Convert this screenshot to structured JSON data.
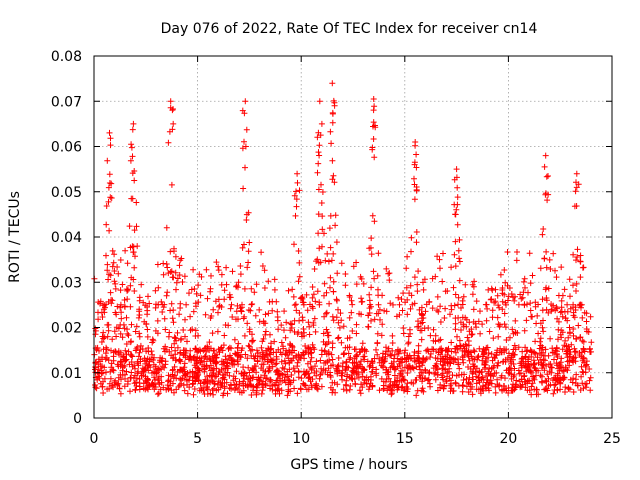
{
  "chart_data": {
    "type": "scatter",
    "title": "Day 076 of 2022, Rate Of TEC Index for receiver cn14",
    "xlabel": "GPS time / hours",
    "ylabel": "ROTI / TECUs",
    "xlim": [
      0,
      25
    ],
    "ylim": [
      0,
      0.08
    ],
    "xticks": [
      0,
      5,
      10,
      15,
      20,
      25
    ],
    "xtick_labels": [
      "0",
      "5",
      "10",
      "15",
      "20",
      "25"
    ],
    "yticks": [
      0,
      0.01,
      0.02,
      0.03,
      0.04,
      0.05,
      0.06,
      0.07,
      0.08
    ],
    "ytick_labels": [
      "0",
      "0.01",
      "0.02",
      "0.03",
      "0.04",
      "0.05",
      "0.06",
      "0.07",
      "0.08"
    ],
    "grid": true,
    "marker": "+",
    "marker_color": "#ff0000",
    "data_time_range_hours": [
      0,
      24
    ],
    "typical_range": [
      0.005,
      0.025
    ],
    "baseline": 0.011,
    "point_count": 2600,
    "peaks": [
      {
        "x": 0.75,
        "y": 0.063
      },
      {
        "x": 1.9,
        "y": 0.065
      },
      {
        "x": 3.7,
        "y": 0.07
      },
      {
        "x": 7.3,
        "y": 0.07
      },
      {
        "x": 9.8,
        "y": 0.054
      },
      {
        "x": 10.9,
        "y": 0.07
      },
      {
        "x": 11.5,
        "y": 0.074
      },
      {
        "x": 13.5,
        "y": 0.0705
      },
      {
        "x": 15.5,
        "y": 0.061
      },
      {
        "x": 17.5,
        "y": 0.055
      },
      {
        "x": 21.8,
        "y": 0.058
      },
      {
        "x": 23.3,
        "y": 0.054
      }
    ]
  }
}
